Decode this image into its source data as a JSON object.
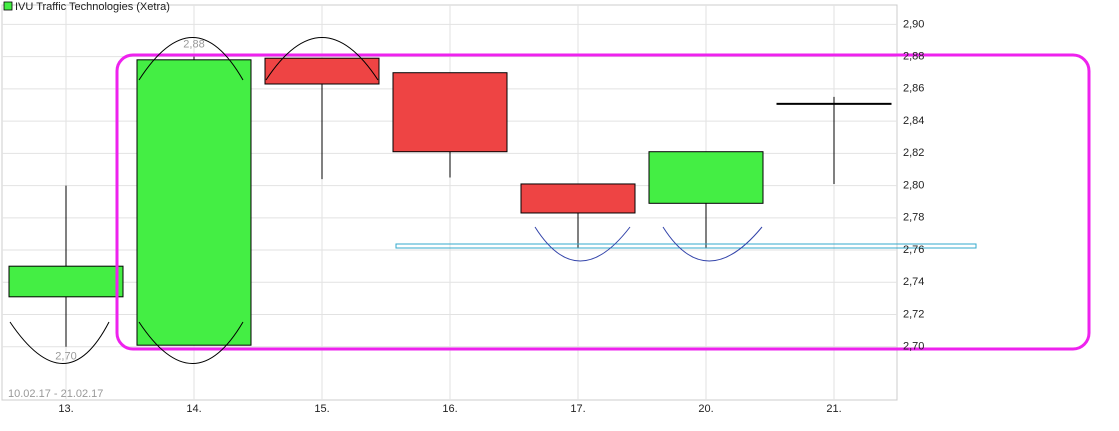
{
  "chart_data": {
    "type": "candlestick",
    "title": "IVU Traffic Technologies (Xetra)",
    "subtitle": "10.02.17 - 21.02.17",
    "categories": [
      "13.",
      "14.",
      "15.",
      "16.",
      "17.",
      "20.",
      "21."
    ],
    "open": [
      2.731,
      2.701,
      2.879,
      2.87,
      2.801,
      2.789,
      2.851
    ],
    "high": [
      2.8,
      2.88,
      2.879,
      2.87,
      2.801,
      2.821,
      2.855
    ],
    "low": [
      2.7,
      2.701,
      2.804,
      2.805,
      2.761,
      2.761,
      2.801
    ],
    "close": [
      2.75,
      2.878,
      2.863,
      2.821,
      2.783,
      2.821,
      2.851
    ],
    "up_color": "#44ee44",
    "down_color": "#ee4444",
    "annotations": [
      {
        "value": 2.88,
        "label": "2,88",
        "x": "14."
      },
      {
        "value": 2.7,
        "label": "2,70",
        "x": "13."
      }
    ],
    "ylim": [
      2.667,
      2.912
    ],
    "yticks": [
      {
        "value": 2.7,
        "label": "2,70"
      },
      {
        "value": 2.72,
        "label": "2,72"
      },
      {
        "value": 2.74,
        "label": "2,74"
      },
      {
        "value": 2.76,
        "label": "2,76"
      },
      {
        "value": 2.78,
        "label": "2,78"
      },
      {
        "value": 2.8,
        "label": "2,80"
      },
      {
        "value": 2.82,
        "label": "2,82"
      },
      {
        "value": 2.84,
        "label": "2,84"
      },
      {
        "value": 2.86,
        "label": "2,86"
      },
      {
        "value": 2.88,
        "label": "2,88"
      },
      {
        "value": 2.9,
        "label": "2,90"
      }
    ],
    "grid": true
  }
}
